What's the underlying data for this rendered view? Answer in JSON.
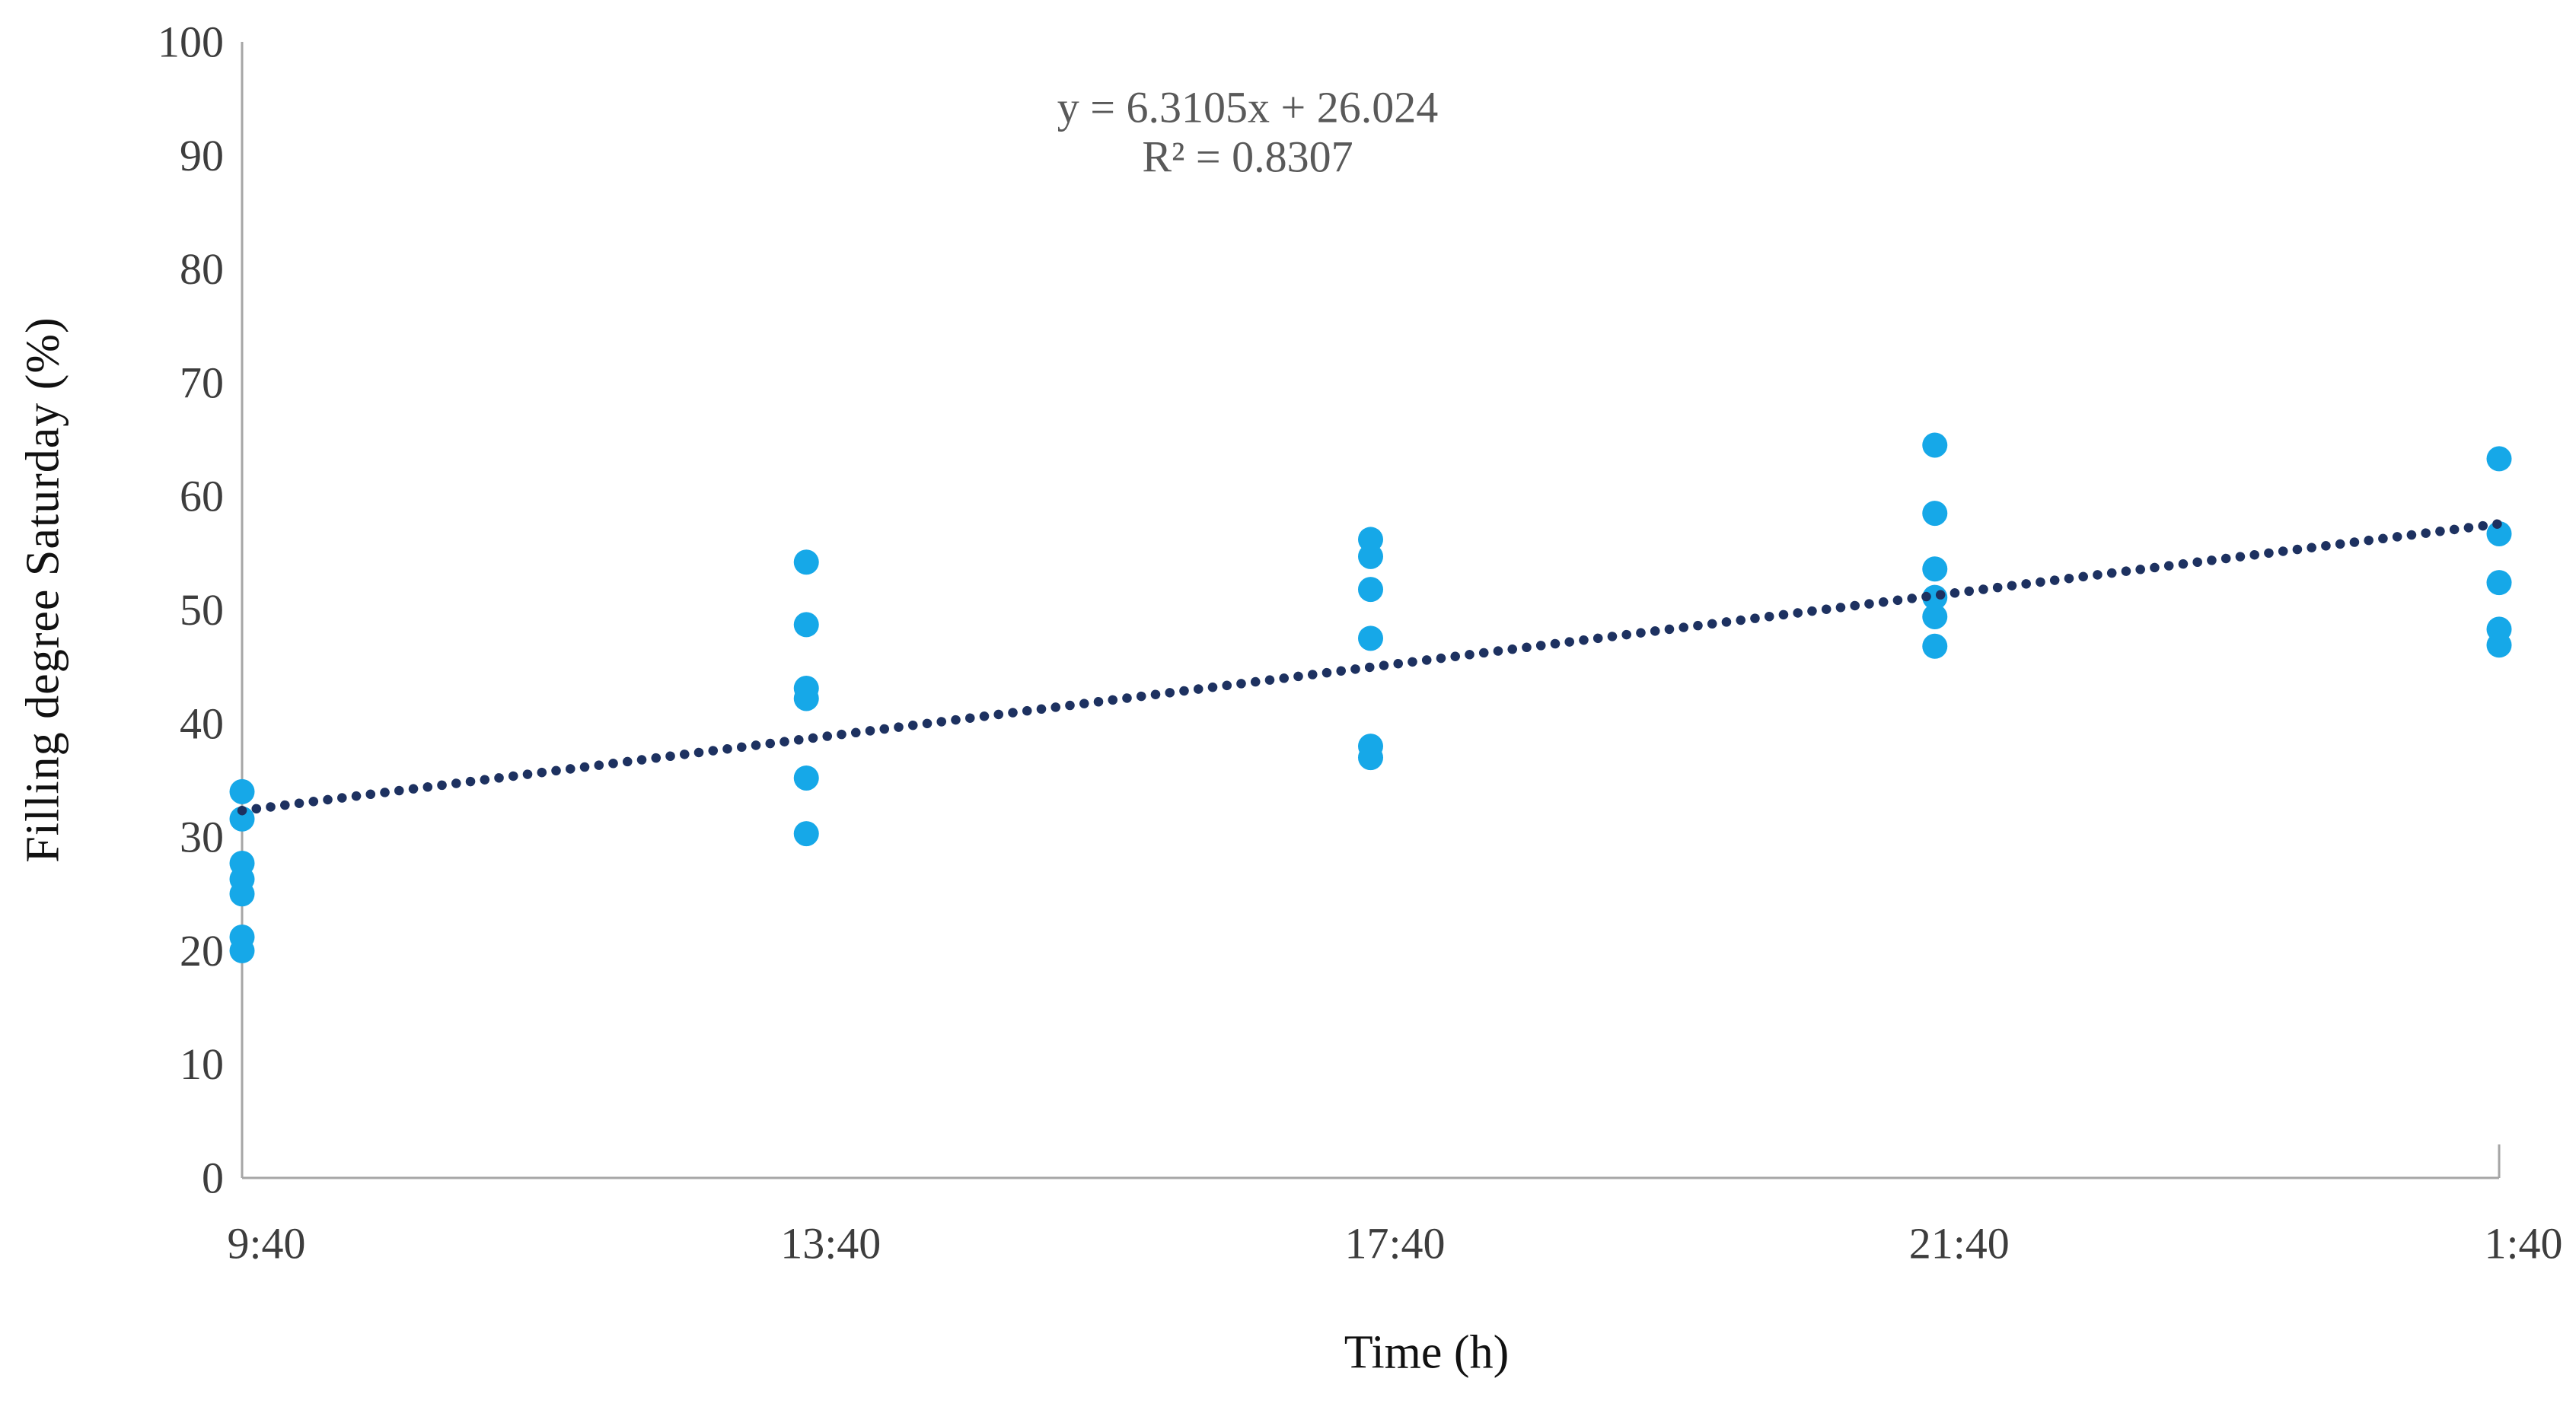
{
  "figure": {
    "background": "#ffffff"
  },
  "chart_data": {
    "type": "scatter",
    "title": "",
    "xlabel": "Time (h)",
    "ylabel": "Filling degree Saturday (%)",
    "categories": [
      "9:40",
      "13:40",
      "17:40",
      "21:40",
      "1:40"
    ],
    "x_values": [
      1,
      2,
      3,
      4,
      5
    ],
    "ylim": [
      0,
      100
    ],
    "yticks": [
      0,
      10,
      20,
      30,
      40,
      50,
      60,
      70,
      80,
      90,
      100
    ],
    "grid": false,
    "legend_position": "none",
    "annotations": {
      "equation": "y = 6.3105x + 26.024",
      "r_squared": "R² = 0.8307"
    },
    "trendline": {
      "slope": 6.3105,
      "intercept": 26.024,
      "r_squared": 0.8307,
      "x_start": 1,
      "x_end": 5,
      "style": "dotted"
    },
    "series": [
      {
        "name": "Filling degree Saturday",
        "marker": "circle",
        "points": [
          [
            1,
            34.0
          ],
          [
            1,
            31.6
          ],
          [
            1,
            27.7
          ],
          [
            1,
            26.3
          ],
          [
            1,
            25.0
          ],
          [
            1,
            21.2
          ],
          [
            1,
            20.0
          ],
          [
            2,
            54.2
          ],
          [
            2,
            48.7
          ],
          [
            2,
            43.1
          ],
          [
            2,
            42.2
          ],
          [
            2,
            35.2
          ],
          [
            2,
            30.3
          ],
          [
            3,
            56.2
          ],
          [
            3,
            54.7
          ],
          [
            3,
            51.8
          ],
          [
            3,
            47.5
          ],
          [
            3,
            38.0
          ],
          [
            3,
            37.0
          ],
          [
            4,
            64.5
          ],
          [
            4,
            58.5
          ],
          [
            4,
            53.6
          ],
          [
            4,
            51.1
          ],
          [
            4,
            49.4
          ],
          [
            4,
            46.8
          ],
          [
            5,
            63.3
          ],
          [
            5,
            56.7
          ],
          [
            5,
            52.4
          ],
          [
            5,
            48.3
          ],
          [
            5,
            46.9
          ]
        ]
      }
    ],
    "colors": {
      "marker": "#16A8E8",
      "trendline": "#1D3160",
      "axis_line": "#A6A6A6",
      "tick_label": "#3D3D3D",
      "annotation_text": "#595959",
      "axis_title": "#111111"
    }
  }
}
